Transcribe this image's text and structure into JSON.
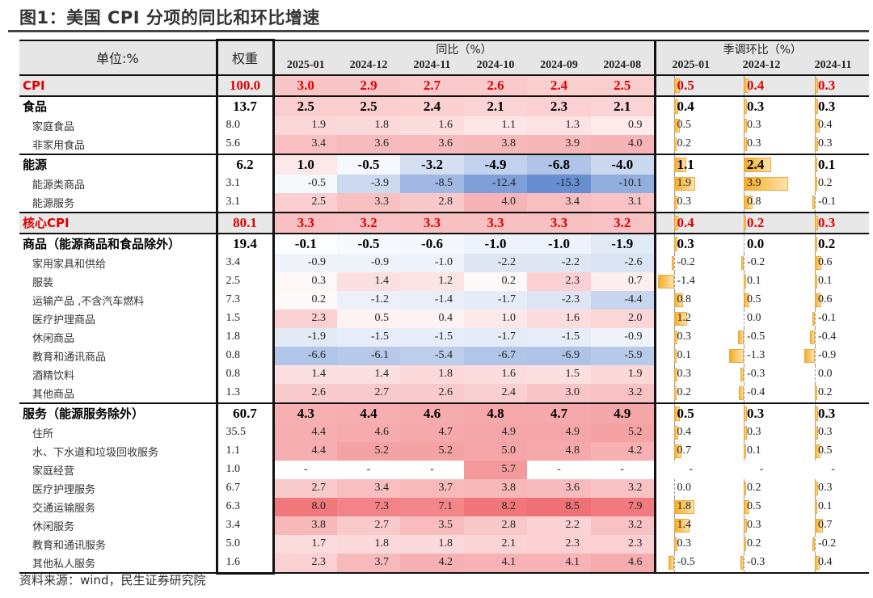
{
  "title": "图1：美国 CPI 分项的同比和环比增速",
  "header": {
    "unit": "单位:%",
    "weight": "权重",
    "yoy_group": "同比（%）",
    "mom_group": "季调环比（%）",
    "yoy_periods": [
      "2025-01",
      "2024-12",
      "2024-11",
      "2024-10",
      "2024-09",
      "2024-08"
    ],
    "mom_periods": [
      "2025-01",
      "2024-12",
      "2024-11"
    ]
  },
  "colors": {
    "positive": "#ef6a6e",
    "negative": "#5f88cf",
    "highlight_text": "#e00000",
    "bar": "#f5ad2a"
  },
  "rows": [
    {
      "label": "CPI",
      "type": "major",
      "highlight": true,
      "weight": "100.0",
      "yoy": [
        "3.0",
        "2.9",
        "2.7",
        "2.6",
        "2.4",
        "2.5"
      ],
      "mom": [
        "0.5",
        "0.4",
        "0.3"
      ]
    },
    {
      "label": "食品",
      "type": "major",
      "weight": "13.7",
      "yoy": [
        "2.5",
        "2.5",
        "2.4",
        "2.1",
        "2.3",
        "2.1"
      ],
      "mom": [
        "0.4",
        "0.3",
        "0.3"
      ]
    },
    {
      "label": "家庭食品",
      "type": "sub",
      "weight": "8.0",
      "yoy": [
        "1.9",
        "1.8",
        "1.6",
        "1.1",
        "1.3",
        "0.9"
      ],
      "mom": [
        "0.5",
        "0.3",
        "0.4"
      ]
    },
    {
      "label": "非家用食品",
      "type": "sub",
      "weight": "5.6",
      "yoy": [
        "3.4",
        "3.6",
        "3.6",
        "3.8",
        "3.9",
        "4.0"
      ],
      "mom": [
        "0.2",
        "0.3",
        "0.3"
      ]
    },
    {
      "label": "能源",
      "type": "major",
      "weight": "6.2",
      "yoy": [
        "1.0",
        "-0.5",
        "-3.2",
        "-4.9",
        "-6.8",
        "-4.0"
      ],
      "mom": [
        "1.1",
        "2.4",
        "0.1"
      ]
    },
    {
      "label": "能源类商品",
      "type": "sub",
      "weight": "3.1",
      "yoy": [
        "-0.5",
        "-3.9",
        "-8.5",
        "-12.4",
        "-15.3",
        "-10.1"
      ],
      "mom": [
        "1.9",
        "3.9",
        "0.2"
      ]
    },
    {
      "label": "能源服务",
      "type": "sub",
      "weight": "3.1",
      "yoy": [
        "2.5",
        "3.3",
        "2.8",
        "4.0",
        "3.4",
        "3.1"
      ],
      "mom": [
        "0.3",
        "0.8",
        "-0.1"
      ]
    },
    {
      "label": "核心CPI",
      "type": "major",
      "highlight": true,
      "weight": "80.1",
      "yoy": [
        "3.3",
        "3.2",
        "3.3",
        "3.3",
        "3.3",
        "3.2"
      ],
      "mom": [
        "0.4",
        "0.2",
        "0.3"
      ]
    },
    {
      "label": "商品（能源商品和食品除外）",
      "type": "major",
      "weight": "19.4",
      "yoy": [
        "-0.1",
        "-0.5",
        "-0.6",
        "-1.0",
        "-1.0",
        "-1.9"
      ],
      "mom": [
        "0.3",
        "0.0",
        "0.2"
      ]
    },
    {
      "label": "家用家具和供给",
      "type": "sub",
      "weight": "3.4",
      "yoy": [
        "-0.9",
        "-0.9",
        "-1.0",
        "-2.2",
        "-2.2",
        "-2.6"
      ],
      "mom": [
        "-0.2",
        "-0.2",
        "0.6"
      ]
    },
    {
      "label": "服装",
      "type": "sub",
      "weight": "2.5",
      "yoy": [
        "0.3",
        "1.4",
        "1.2",
        "0.2",
        "2.3",
        "0.7"
      ],
      "mom": [
        "-1.4",
        "0.1",
        "0.1"
      ]
    },
    {
      "label": "运输产品 ,不含汽车燃料",
      "type": "sub",
      "weight": "7.3",
      "yoy": [
        "0.2",
        "-1.2",
        "-1.4",
        "-1.7",
        "-2.3",
        "-4.4"
      ],
      "mom": [
        "0.8",
        "0.5",
        "0.6"
      ]
    },
    {
      "label": "医疗护理商品",
      "type": "sub",
      "weight": "1.5",
      "yoy": [
        "2.3",
        "0.5",
        "0.4",
        "1.0",
        "1.6",
        "2.0"
      ],
      "mom": [
        "1.2",
        "0.0",
        "-0.1"
      ]
    },
    {
      "label": "休闲商品",
      "type": "sub",
      "weight": "1.8",
      "yoy": [
        "-1.9",
        "-1.5",
        "-1.5",
        "-1.7",
        "-1.5",
        "-0.9"
      ],
      "mom": [
        "0.3",
        "-0.5",
        "-0.4"
      ]
    },
    {
      "label": "教育和通讯商品",
      "type": "sub",
      "weight": "0.8",
      "yoy": [
        "-6.6",
        "-6.1",
        "-5.4",
        "-6.7",
        "-6.9",
        "-5.9"
      ],
      "mom": [
        "0.1",
        "-1.3",
        "-0.9"
      ]
    },
    {
      "label": "酒精饮料",
      "type": "sub",
      "weight": "0.8",
      "yoy": [
        "1.4",
        "1.4",
        "1.8",
        "1.6",
        "1.5",
        "1.9"
      ],
      "mom": [
        "0.3",
        "-0.3",
        "0.0"
      ]
    },
    {
      "label": "其他商品",
      "type": "sub",
      "weight": "1.3",
      "yoy": [
        "2.6",
        "2.7",
        "2.6",
        "2.4",
        "3.0",
        "3.2"
      ],
      "mom": [
        "0.2",
        "-0.4",
        "0.2"
      ]
    },
    {
      "label": "服务（能源服务除外）",
      "type": "major",
      "weight": "60.7",
      "yoy": [
        "4.3",
        "4.4",
        "4.6",
        "4.8",
        "4.7",
        "4.9"
      ],
      "mom": [
        "0.5",
        "0.3",
        "0.3"
      ]
    },
    {
      "label": "住所",
      "type": "sub",
      "weight": "35.5",
      "yoy": [
        "4.4",
        "4.6",
        "4.7",
        "4.9",
        "4.9",
        "5.2"
      ],
      "mom": [
        "0.4",
        "0.3",
        "0.3"
      ]
    },
    {
      "label": "水、下水道和垃圾回收服务",
      "type": "sub",
      "weight": "1.1",
      "yoy": [
        "4.4",
        "5.2",
        "5.2",
        "5.0",
        "4.8",
        "4.2"
      ],
      "mom": [
        "0.7",
        "0.1",
        "0.5"
      ]
    },
    {
      "label": "家庭经营",
      "type": "sub",
      "weight": "1.0",
      "yoy": [
        "-",
        "-",
        "-",
        "5.7",
        "-",
        "-"
      ],
      "mom": [
        "-",
        "-",
        "-"
      ]
    },
    {
      "label": "医疗护理服务",
      "type": "sub",
      "weight": "6.7",
      "yoy": [
        "2.7",
        "3.4",
        "3.7",
        "3.8",
        "3.6",
        "3.2"
      ],
      "mom": [
        "0.0",
        "0.2",
        "0.3"
      ]
    },
    {
      "label": "交通运输服务",
      "type": "sub",
      "weight": "6.3",
      "yoy": [
        "8.0",
        "7.3",
        "7.1",
        "8.2",
        "8.5",
        "7.9"
      ],
      "mom": [
        "1.8",
        "0.5",
        "0.1"
      ]
    },
    {
      "label": "休闲服务",
      "type": "sub",
      "weight": "3.4",
      "yoy": [
        "3.8",
        "2.7",
        "3.5",
        "2.8",
        "2.2",
        "3.2"
      ],
      "mom": [
        "1.4",
        "0.3",
        "0.7"
      ]
    },
    {
      "label": "教育和通讯服务",
      "type": "sub",
      "weight": "5.0",
      "yoy": [
        "1.7",
        "1.8",
        "1.8",
        "2.1",
        "2.3",
        "2.3"
      ],
      "mom": [
        "0.3",
        "0.2",
        "-0.2"
      ]
    },
    {
      "label": "其他私人服务",
      "type": "sub",
      "weight": "1.6",
      "yoy": [
        "2.3",
        "3.7",
        "4.2",
        "4.1",
        "4.1",
        "4.6"
      ],
      "mom": [
        "-0.5",
        "-0.3",
        "0.4"
      ]
    }
  ],
  "source": "资料来源：wind，民生证券研究院"
}
